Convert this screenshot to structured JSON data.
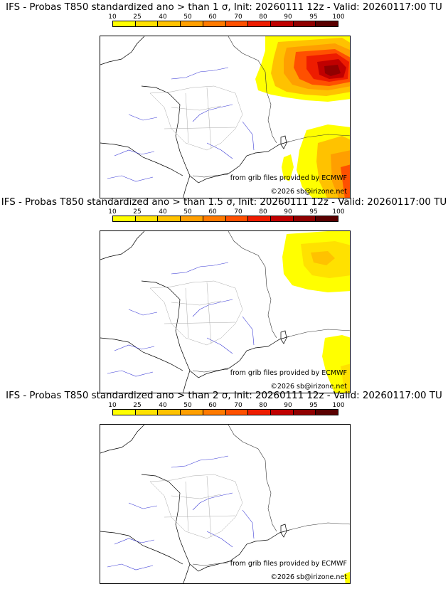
{
  "colorbar": {
    "labels": [
      "10",
      "25",
      "40",
      "50",
      "60",
      "70",
      "80",
      "90",
      "95",
      "100"
    ],
    "colors": [
      "#ffff00",
      "#ffe100",
      "#ffc200",
      "#ff9f00",
      "#ff7a00",
      "#ff5000",
      "#ee1c00",
      "#c00000",
      "#900000",
      "#5a0000"
    ]
  },
  "panels": [
    {
      "title": "IFS - Probas T850  standardized ano > than 1 σ, Init: 20260111 12z - Valid: 20260117:00 TU",
      "credit_source": "from grib files provided by ECMWF",
      "credit_copyright": "©2026 sb@irizone.net"
    },
    {
      "title": "IFS - Probas T850  standardized ano > than 1.5 σ, Init: 20260111 12z - Valid: 20260117:00 TU",
      "credit_source": "from grib files provided by ECMWF",
      "credit_copyright": "©2026 sb@irizone.net"
    },
    {
      "title": "IFS - Probas T850  standardized ano > than 2 σ, Init: 20260111 12z - Valid: 20260117:00 TU",
      "credit_source": "from grib files provided by ECMWF",
      "credit_copyright": "©2026 sb@irizone.net"
    }
  ]
}
